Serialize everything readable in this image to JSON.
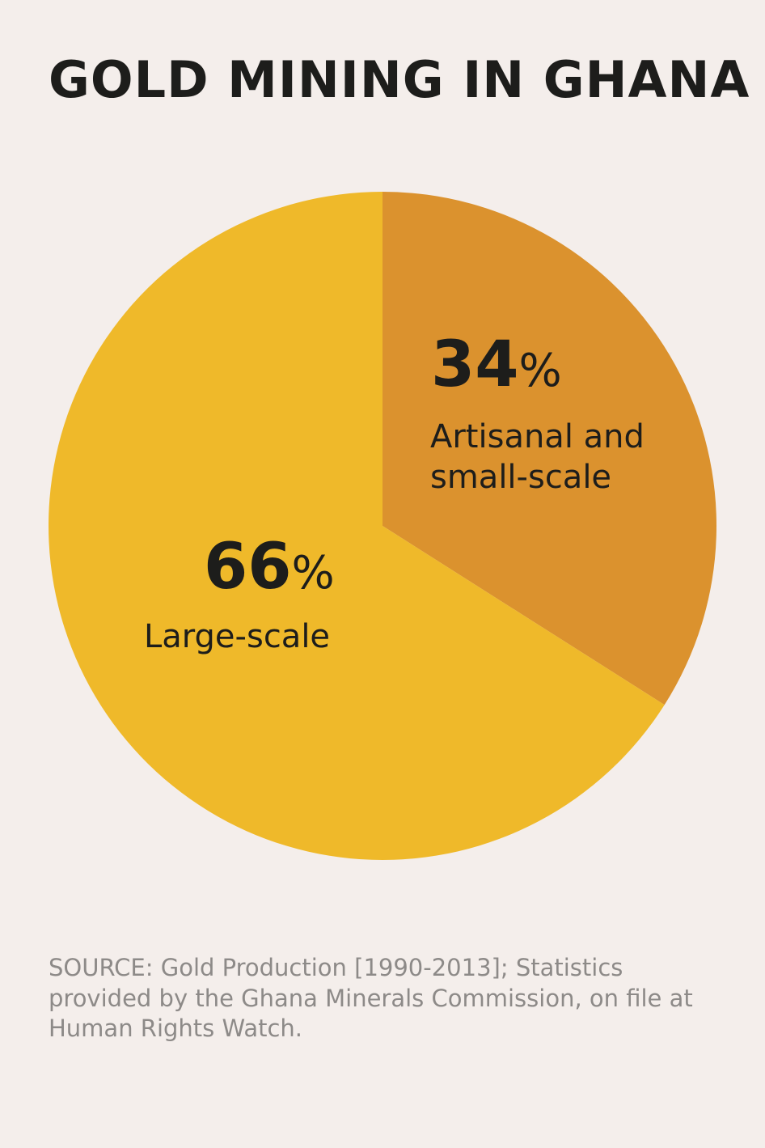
{
  "chart_data": {
    "type": "pie",
    "title": "GOLD MINING IN GHANA",
    "slices": [
      {
        "label_pct": "34",
        "label": "Artisanal and small-scale",
        "label_lines": [
          "Artisanal and",
          "small-scale"
        ],
        "value": 34,
        "color": "#db922e"
      },
      {
        "label_pct": "66",
        "label": "Large-scale",
        "label_lines": [
          "Large-scale"
        ],
        "value": 66,
        "color": "#efb92a"
      }
    ],
    "percent_symbol": "%",
    "start_angle": "12 o'clock, clockwise"
  },
  "source": "SOURCE: Gold Production [1990-2013]; Statistics provided by the Ghana Minerals Commission, on file at Human Rights Watch."
}
